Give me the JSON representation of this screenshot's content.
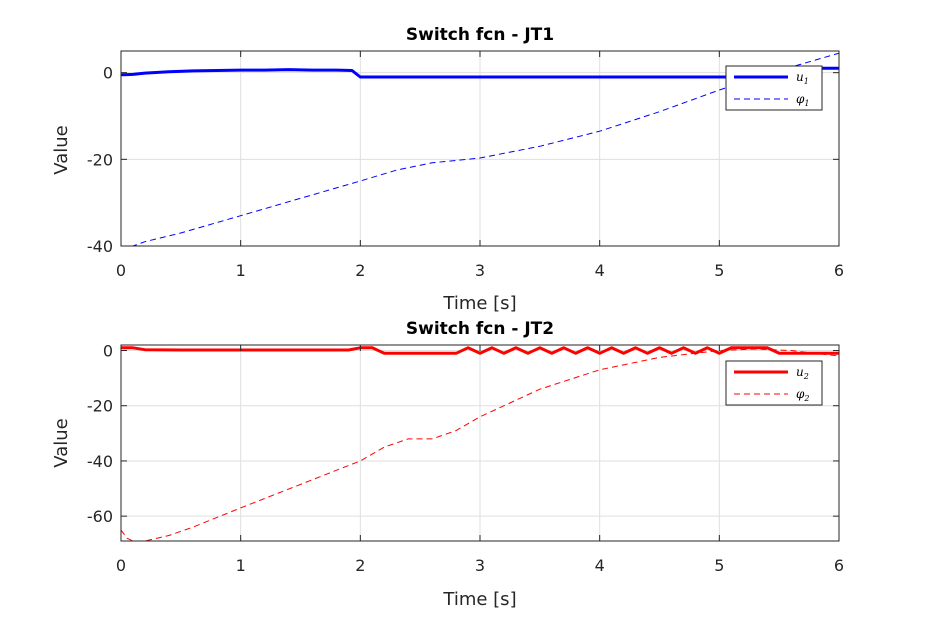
{
  "chart_data": [
    {
      "type": "line",
      "title": "Switch fcn - JT1",
      "xlabel": "Time [s]",
      "ylabel": "Value",
      "xlim": [
        0,
        6
      ],
      "ylim": [
        -40,
        5
      ],
      "xticks": [
        0,
        1,
        2,
        3,
        4,
        5,
        6
      ],
      "yticks": [
        -40,
        -20,
        0
      ],
      "grid": true,
      "legend_position": "top-right",
      "series": [
        {
          "name": "u",
          "subscript": "1",
          "color": "#0000ff",
          "style": "solid",
          "width": 3,
          "x": [
            0,
            0.1,
            0.2,
            0.4,
            0.6,
            0.8,
            1.0,
            1.2,
            1.4,
            1.6,
            1.8,
            1.93,
            2.0,
            2.2,
            2.5,
            3.0,
            3.5,
            4.0,
            4.5,
            5.0,
            5.2,
            5.35,
            5.5,
            5.8,
            6.0
          ],
          "y": [
            -0.5,
            -0.4,
            -0.1,
            0.2,
            0.4,
            0.5,
            0.6,
            0.6,
            0.7,
            0.6,
            0.6,
            0.5,
            -1.0,
            -1.0,
            -1.0,
            -1.0,
            -1.0,
            -1.0,
            -1.0,
            -1.0,
            -1.0,
            -1.0,
            1.0,
            1.0,
            1.0
          ]
        },
        {
          "name": "φ",
          "subscript": "1",
          "color": "#0000ff",
          "style": "dashed",
          "width": 1,
          "x": [
            0,
            0.1,
            0.2,
            0.5,
            1.0,
            1.5,
            2.0,
            2.3,
            2.6,
            3.0,
            3.5,
            4.0,
            4.5,
            5.0,
            5.5,
            6.0
          ],
          "y": [
            -40,
            -40,
            -39,
            -37,
            -33,
            -29,
            -25,
            -22.5,
            -20.8,
            -19.7,
            -17,
            -13.5,
            -9,
            -4,
            0.5,
            4.5
          ]
        }
      ]
    },
    {
      "type": "line",
      "title": "Switch fcn - JT2",
      "xlabel": "Time [s]",
      "ylabel": "Value",
      "xlim": [
        0,
        6
      ],
      "ylim": [
        -69,
        2
      ],
      "xticks": [
        0,
        1,
        2,
        3,
        4,
        5,
        6
      ],
      "yticks": [
        -60,
        -40,
        -20,
        0
      ],
      "grid": true,
      "legend_position": "right",
      "series": [
        {
          "name": "u",
          "subscript": "2",
          "color": "#ff0000",
          "style": "solid",
          "width": 3,
          "x": [
            0,
            0.1,
            0.2,
            0.5,
            1.0,
            1.5,
            1.9,
            2.0,
            2.1,
            2.2,
            2.5,
            2.8,
            2.9,
            3.0,
            3.1,
            3.2,
            3.3,
            3.4,
            3.5,
            3.6,
            3.7,
            3.8,
            3.9,
            4.0,
            4.1,
            4.2,
            4.3,
            4.4,
            4.5,
            4.6,
            4.7,
            4.8,
            4.9,
            5.0,
            5.1,
            5.3,
            5.4,
            5.5,
            5.8,
            6.0
          ],
          "y": [
            1,
            1,
            0.3,
            0.2,
            0.2,
            0.2,
            0.2,
            1,
            1,
            -1,
            -1,
            -1,
            1,
            -1,
            1,
            -1,
            1,
            -1,
            1,
            -1,
            1,
            -1,
            1,
            -1,
            1,
            -1,
            1,
            -1,
            1,
            -1,
            1,
            -1,
            1,
            -1,
            1,
            1,
            1,
            -1,
            -1,
            -1
          ]
        },
        {
          "name": "φ",
          "subscript": "2",
          "color": "#ff0000",
          "style": "dashed",
          "width": 1,
          "x": [
            0,
            0.05,
            0.1,
            0.2,
            0.4,
            0.6,
            1.0,
            1.5,
            2.0,
            2.2,
            2.4,
            2.6,
            2.8,
            3.0,
            3.5,
            4.0,
            4.5,
            5.0,
            5.3,
            5.6,
            5.8,
            6.0
          ],
          "y": [
            -65,
            -68,
            -69,
            -69,
            -67,
            -64,
            -57,
            -48.5,
            -40,
            -35,
            -32,
            -32,
            -29,
            -24,
            -14,
            -7,
            -2.5,
            0,
            0.5,
            0,
            -1,
            -2
          ]
        }
      ]
    }
  ]
}
